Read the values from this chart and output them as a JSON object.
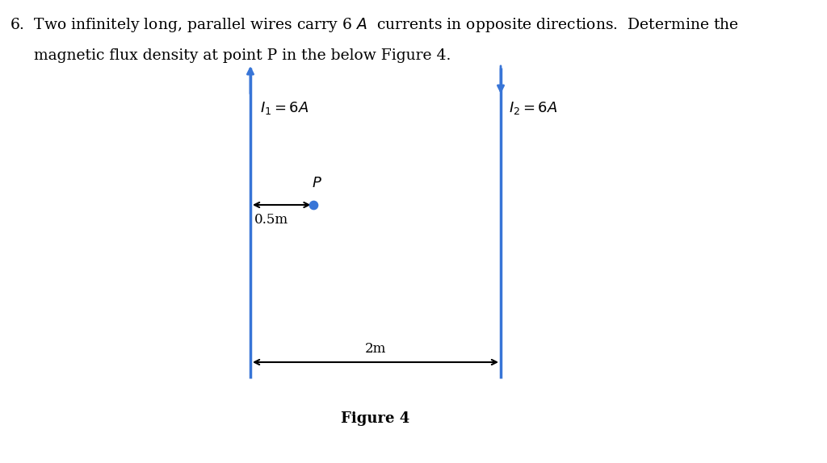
{
  "bg_color": "#ffffff",
  "wire_color": "#3875d7",
  "text_color": "#000000",
  "arrow_color": "#000000",
  "wire_linewidth": 2.0,
  "title_line1": "6.  Two infinitely long, parallel wires carry 6   A   currents in opposite directions.  Determine the",
  "title_line2": "     magnetic flux density at point P in the below Figure 4.",
  "title_fontsize": 13.5,
  "fig_caption": "Figure 4",
  "fig_caption_fontsize": 13,
  "label_I1": "$I_1 = 6A$",
  "label_I2": "$I_2 = 6A$",
  "label_P": "$P$",
  "label_05m": "0.5m",
  "label_2m": "2m",
  "label_fontsize": 13,
  "small_label_fontsize": 12,
  "fig_width": 10.24,
  "fig_height": 5.74
}
